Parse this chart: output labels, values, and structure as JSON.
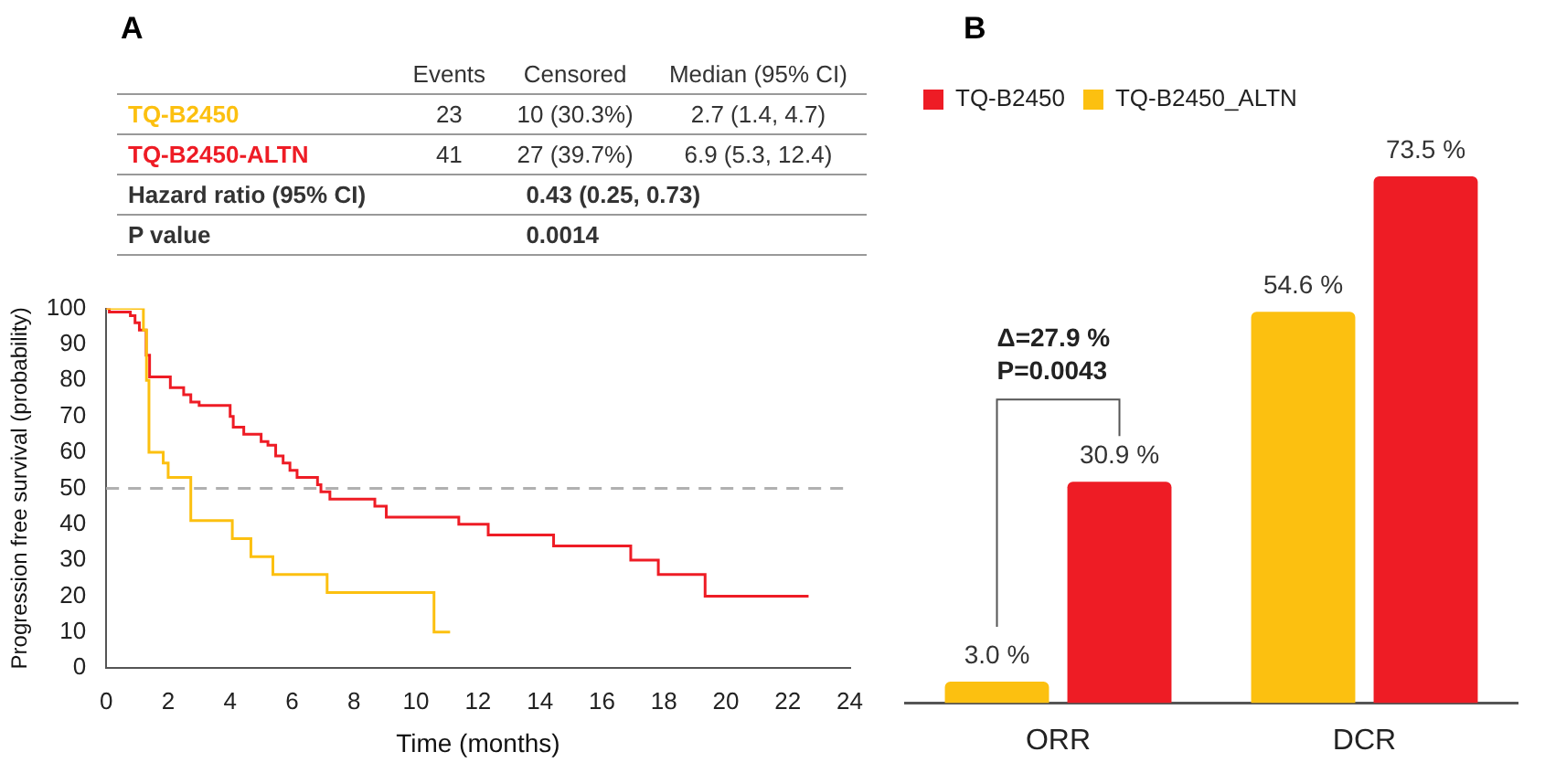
{
  "chart_data": [
    {
      "type": "step",
      "title": "A",
      "xlabel": "Time (months)",
      "ylabel": "Progression free survival (probability)",
      "xlim": [
        0,
        24
      ],
      "xticks": [
        0,
        2,
        4,
        6,
        8,
        10,
        12,
        14,
        16,
        18,
        20,
        22,
        24
      ],
      "ylim": [
        0,
        100
      ],
      "yticks": [
        0,
        10,
        20,
        30,
        40,
        50,
        60,
        70,
        80,
        90,
        100
      ],
      "series": [
        {
          "name": "TQ-B2450",
          "color": "#fcc010",
          "x": [
            0,
            1.2,
            1.3,
            1.38,
            1.84,
            2.0,
            2.73,
            4.07,
            4.67,
            5.38,
            7.13,
            10.58,
            11.1
          ],
          "values": [
            100,
            94,
            80,
            60,
            57,
            53,
            41,
            36,
            31,
            26,
            21,
            10,
            10
          ]
        },
        {
          "name": "TQ-B2450-ALTN",
          "color": "#ee1c25",
          "x": [
            0,
            0.1,
            0.78,
            0.93,
            1.07,
            1.29,
            1.4,
            2.07,
            2.5,
            2.73,
            3.0,
            4.0,
            4.1,
            4.44,
            5.0,
            5.22,
            5.47,
            5.71,
            5.93,
            6.16,
            6.82,
            6.93,
            7.22,
            8.67,
            9.04,
            11.38,
            12.33,
            14.44,
            16.93,
            17.82,
            19.33,
            22.67
          ],
          "values": [
            100,
            99,
            98,
            96,
            94,
            87,
            81,
            78,
            76,
            74,
            73,
            70,
            67,
            65,
            63,
            62,
            59,
            57,
            55,
            53,
            51,
            49,
            47,
            45,
            42,
            40,
            37,
            34,
            30,
            26,
            20,
            20
          ]
        }
      ],
      "ref_lines": [
        {
          "axis": "y",
          "value": 50,
          "color": "#b0b0b0",
          "line_style": "dashed"
        }
      ],
      "annotations": [
        "Events",
        "Censored",
        "Median (95% CI)",
        "23",
        "10 (30.3%)",
        "2.7 (1.4, 4.7)",
        "41",
        "27 (39.7%)",
        "6.9 (5.3, 12.4)",
        "Hazard ratio (95% CI)",
        "0.43 (0.25, 0.73)",
        "P value",
        "0.0014"
      ]
    },
    {
      "type": "bar",
      "title": "B",
      "categories": [
        "ORR",
        "DCR"
      ],
      "legend": "top left",
      "series": [
        {
          "name": "TQ-B2450_ALTN",
          "color": "#fcc010",
          "values": [
            3.0,
            54.6
          ],
          "value_labels": [
            "3.0 %",
            "54.6 %"
          ]
        },
        {
          "name": "TQ-B2450",
          "color": "#ee1c25",
          "values": [
            30.9,
            73.5
          ],
          "value_labels": [
            "30.9 %",
            "73.5 %"
          ]
        }
      ],
      "annotations": [
        "Δ=27.9 %",
        "P=0.0043"
      ]
    }
  ]
}
